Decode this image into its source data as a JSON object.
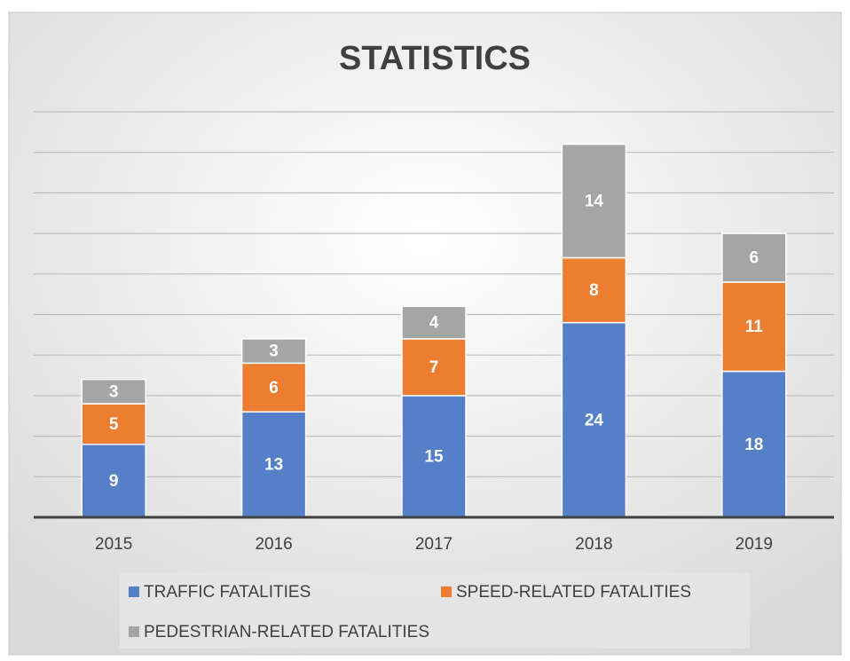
{
  "chart_data": {
    "type": "stacked_bar",
    "title": "STATISTICS",
    "categories": [
      "2015",
      "2016",
      "2017",
      "2018",
      "2019"
    ],
    "series": [
      {
        "name": "TRAFFIC FATALITIES",
        "color": "#5580c8",
        "values": [
          9,
          13,
          15,
          24,
          18
        ]
      },
      {
        "name": "SPEED-RELATED FATALITIES",
        "color": "#ed7d31",
        "values": [
          5,
          6,
          7,
          8,
          11
        ]
      },
      {
        "name": "PEDESTRIAN-RELATED FATALITIES",
        "color": "#a5a5a5",
        "values": [
          3,
          3,
          4,
          14,
          6
        ]
      }
    ],
    "ylim": [
      0,
      50
    ],
    "yticks": [
      0,
      5,
      10,
      15,
      20,
      25,
      30,
      35,
      40,
      45,
      50
    ],
    "grid": true,
    "legend": "bottom"
  }
}
